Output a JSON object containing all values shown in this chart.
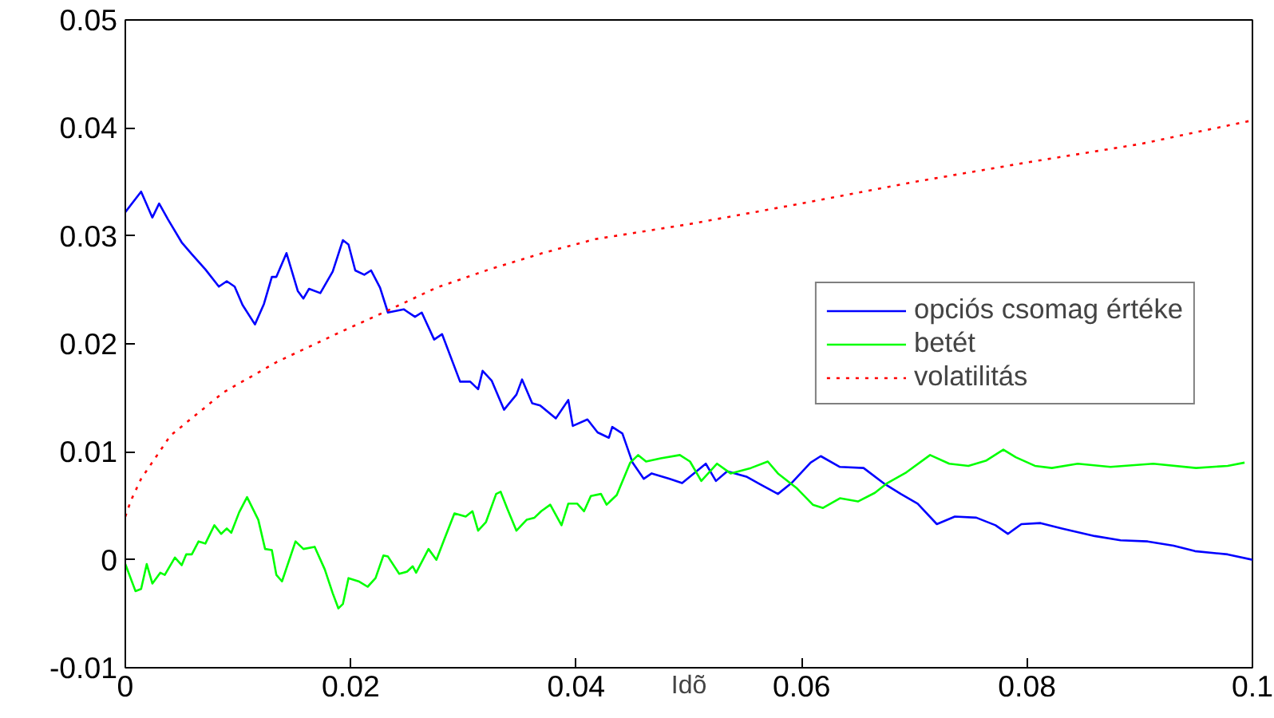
{
  "chart_data": {
    "type": "line",
    "xlabel": "Idõ",
    "xlim": [
      0,
      0.1
    ],
    "ylim": [
      -0.01,
      0.05
    ],
    "xticks": [
      0,
      0.02,
      0.04,
      0.06,
      0.08,
      0.1
    ],
    "yticks": [
      -0.01,
      0,
      0.01,
      0.02,
      0.03,
      0.04,
      0.05
    ],
    "grid": false,
    "legend": "right",
    "marker": "none",
    "series": [
      {
        "name": "opciós csomag értéke",
        "color": "#0000ff",
        "line_style": "solid",
        "x": [
          0,
          0.0014,
          0.0024,
          0.003,
          0.0038,
          0.005,
          0.0059,
          0.0071,
          0.0083,
          0.009,
          0.0097,
          0.0104,
          0.0115,
          0.0123,
          0.013,
          0.0134,
          0.0143,
          0.0153,
          0.0158,
          0.0163,
          0.0173,
          0.0184,
          0.0193,
          0.0198,
          0.0204,
          0.0212,
          0.0218,
          0.0226,
          0.0233,
          0.0247,
          0.0257,
          0.0263,
          0.0274,
          0.0281,
          0.0297,
          0.0306,
          0.0313,
          0.0317,
          0.0325,
          0.0336,
          0.0347,
          0.0352,
          0.0361,
          0.0368,
          0.0382,
          0.0393,
          0.0397,
          0.041,
          0.0419,
          0.0429,
          0.0432,
          0.0441,
          0.045,
          0.046,
          0.0467,
          0.0483,
          0.0494,
          0.0515,
          0.0524,
          0.0534,
          0.0551,
          0.0563,
          0.0579,
          0.0591,
          0.0608,
          0.0617,
          0.0634,
          0.0655,
          0.0674,
          0.0688,
          0.0703,
          0.072,
          0.0736,
          0.0755,
          0.0772,
          0.0783,
          0.0795,
          0.0812,
          0.0831,
          0.086,
          0.0883,
          0.0907,
          0.093,
          0.0949,
          0.0978,
          0.1
        ],
        "values": [
          0.0322,
          0.0341,
          0.0317,
          0.033,
          0.0315,
          0.0294,
          0.0283,
          0.0269,
          0.0253,
          0.0258,
          0.0253,
          0.0236,
          0.0218,
          0.0237,
          0.0262,
          0.0262,
          0.0284,
          0.0249,
          0.0242,
          0.0251,
          0.0247,
          0.0267,
          0.0296,
          0.0292,
          0.0268,
          0.0264,
          0.0268,
          0.0252,
          0.0229,
          0.0232,
          0.0225,
          0.0229,
          0.0204,
          0.0209,
          0.0165,
          0.0165,
          0.0158,
          0.0175,
          0.0166,
          0.0139,
          0.0153,
          0.0167,
          0.0145,
          0.0143,
          0.0131,
          0.0148,
          0.0124,
          0.013,
          0.0118,
          0.0113,
          0.0123,
          0.0117,
          0.009,
          0.0075,
          0.008,
          0.0075,
          0.0071,
          0.0089,
          0.0073,
          0.0082,
          0.0077,
          0.007,
          0.0061,
          0.0071,
          0.009,
          0.0096,
          0.0086,
          0.0085,
          0.007,
          0.0061,
          0.0052,
          0.0033,
          0.004,
          0.0039,
          0.0032,
          0.0024,
          0.0033,
          0.0034,
          0.0029,
          0.0022,
          0.0018,
          0.0017,
          0.0013,
          0.0008,
          0.0005,
          0.0
        ]
      },
      {
        "name": "betét",
        "color": "#00ff00",
        "line_style": "solid",
        "x": [
          0,
          0.0009,
          0.0014,
          0.0019,
          0.0024,
          0.0031,
          0.0035,
          0.0044,
          0.005,
          0.0054,
          0.0059,
          0.0065,
          0.0071,
          0.0079,
          0.0085,
          0.009,
          0.0094,
          0.0101,
          0.0108,
          0.0118,
          0.0124,
          0.013,
          0.0134,
          0.0139,
          0.0151,
          0.0158,
          0.0168,
          0.0177,
          0.0184,
          0.0189,
          0.0193,
          0.0198,
          0.0207,
          0.0215,
          0.0222,
          0.0229,
          0.0233,
          0.0243,
          0.025,
          0.0255,
          0.0258,
          0.0269,
          0.0276,
          0.0283,
          0.0292,
          0.0302,
          0.0308,
          0.0313,
          0.032,
          0.0329,
          0.0333,
          0.0339,
          0.0347,
          0.0356,
          0.0363,
          0.0369,
          0.0377,
          0.0387,
          0.0393,
          0.0401,
          0.0407,
          0.0413,
          0.0422,
          0.0427,
          0.0436,
          0.0448,
          0.0455,
          0.0462,
          0.0475,
          0.0492,
          0.0501,
          0.0511,
          0.0525,
          0.0537,
          0.0555,
          0.057,
          0.0579,
          0.0596,
          0.061,
          0.0619,
          0.0634,
          0.065,
          0.0665,
          0.0676,
          0.0693,
          0.0714,
          0.0731,
          0.0748,
          0.0764,
          0.0779,
          0.079,
          0.0807,
          0.0822,
          0.0845,
          0.0874,
          0.0912,
          0.095,
          0.0978,
          0.0993
        ],
        "values": [
          -0.0004,
          -0.0029,
          -0.0027,
          -0.0004,
          -0.0022,
          -0.0012,
          -0.0014,
          0.0002,
          -0.0005,
          0.0005,
          0.0005,
          0.0017,
          0.0015,
          0.0032,
          0.0024,
          0.0029,
          0.0025,
          0.0044,
          0.0058,
          0.0037,
          0.001,
          0.0009,
          -0.0014,
          -0.002,
          0.0017,
          0.001,
          0.0012,
          -0.0009,
          -0.0031,
          -0.0045,
          -0.0041,
          -0.0017,
          -0.002,
          -0.0025,
          -0.0017,
          0.0004,
          0.0003,
          -0.0013,
          -0.0011,
          -0.0006,
          -0.0012,
          0.001,
          0.0,
          0.0019,
          0.0043,
          0.004,
          0.0045,
          0.0027,
          0.0035,
          0.0061,
          0.0063,
          0.0047,
          0.0027,
          0.0037,
          0.0039,
          0.0045,
          0.0051,
          0.0032,
          0.0052,
          0.0052,
          0.0045,
          0.0059,
          0.0061,
          0.0051,
          0.006,
          0.009,
          0.0097,
          0.0091,
          0.0094,
          0.0097,
          0.0091,
          0.0073,
          0.0089,
          0.008,
          0.0085,
          0.0091,
          0.008,
          0.0066,
          0.0051,
          0.0048,
          0.0057,
          0.0054,
          0.0062,
          0.0071,
          0.0081,
          0.0097,
          0.0089,
          0.0087,
          0.0092,
          0.0102,
          0.0095,
          0.0087,
          0.0085,
          0.0089,
          0.0086,
          0.0089,
          0.0085,
          0.0087,
          0.009
        ]
      },
      {
        "name": "volatilitás",
        "color": "#ff0000",
        "line_style": "dotted",
        "x": [
          0,
          0.0005,
          0.0014,
          0.004,
          0.0087,
          0.0134,
          0.0191,
          0.0229,
          0.0276,
          0.0323,
          0.037,
          0.0417,
          0.0501,
          0.06,
          0.07,
          0.08,
          0.09,
          0.1
        ],
        "values": [
          0.004,
          0.0055,
          0.0075,
          0.0115,
          0.0155,
          0.0183,
          0.0211,
          0.0229,
          0.0252,
          0.0269,
          0.0284,
          0.0297,
          0.0311,
          0.033,
          0.035,
          0.0368,
          0.0385,
          0.0407
        ]
      }
    ]
  }
}
